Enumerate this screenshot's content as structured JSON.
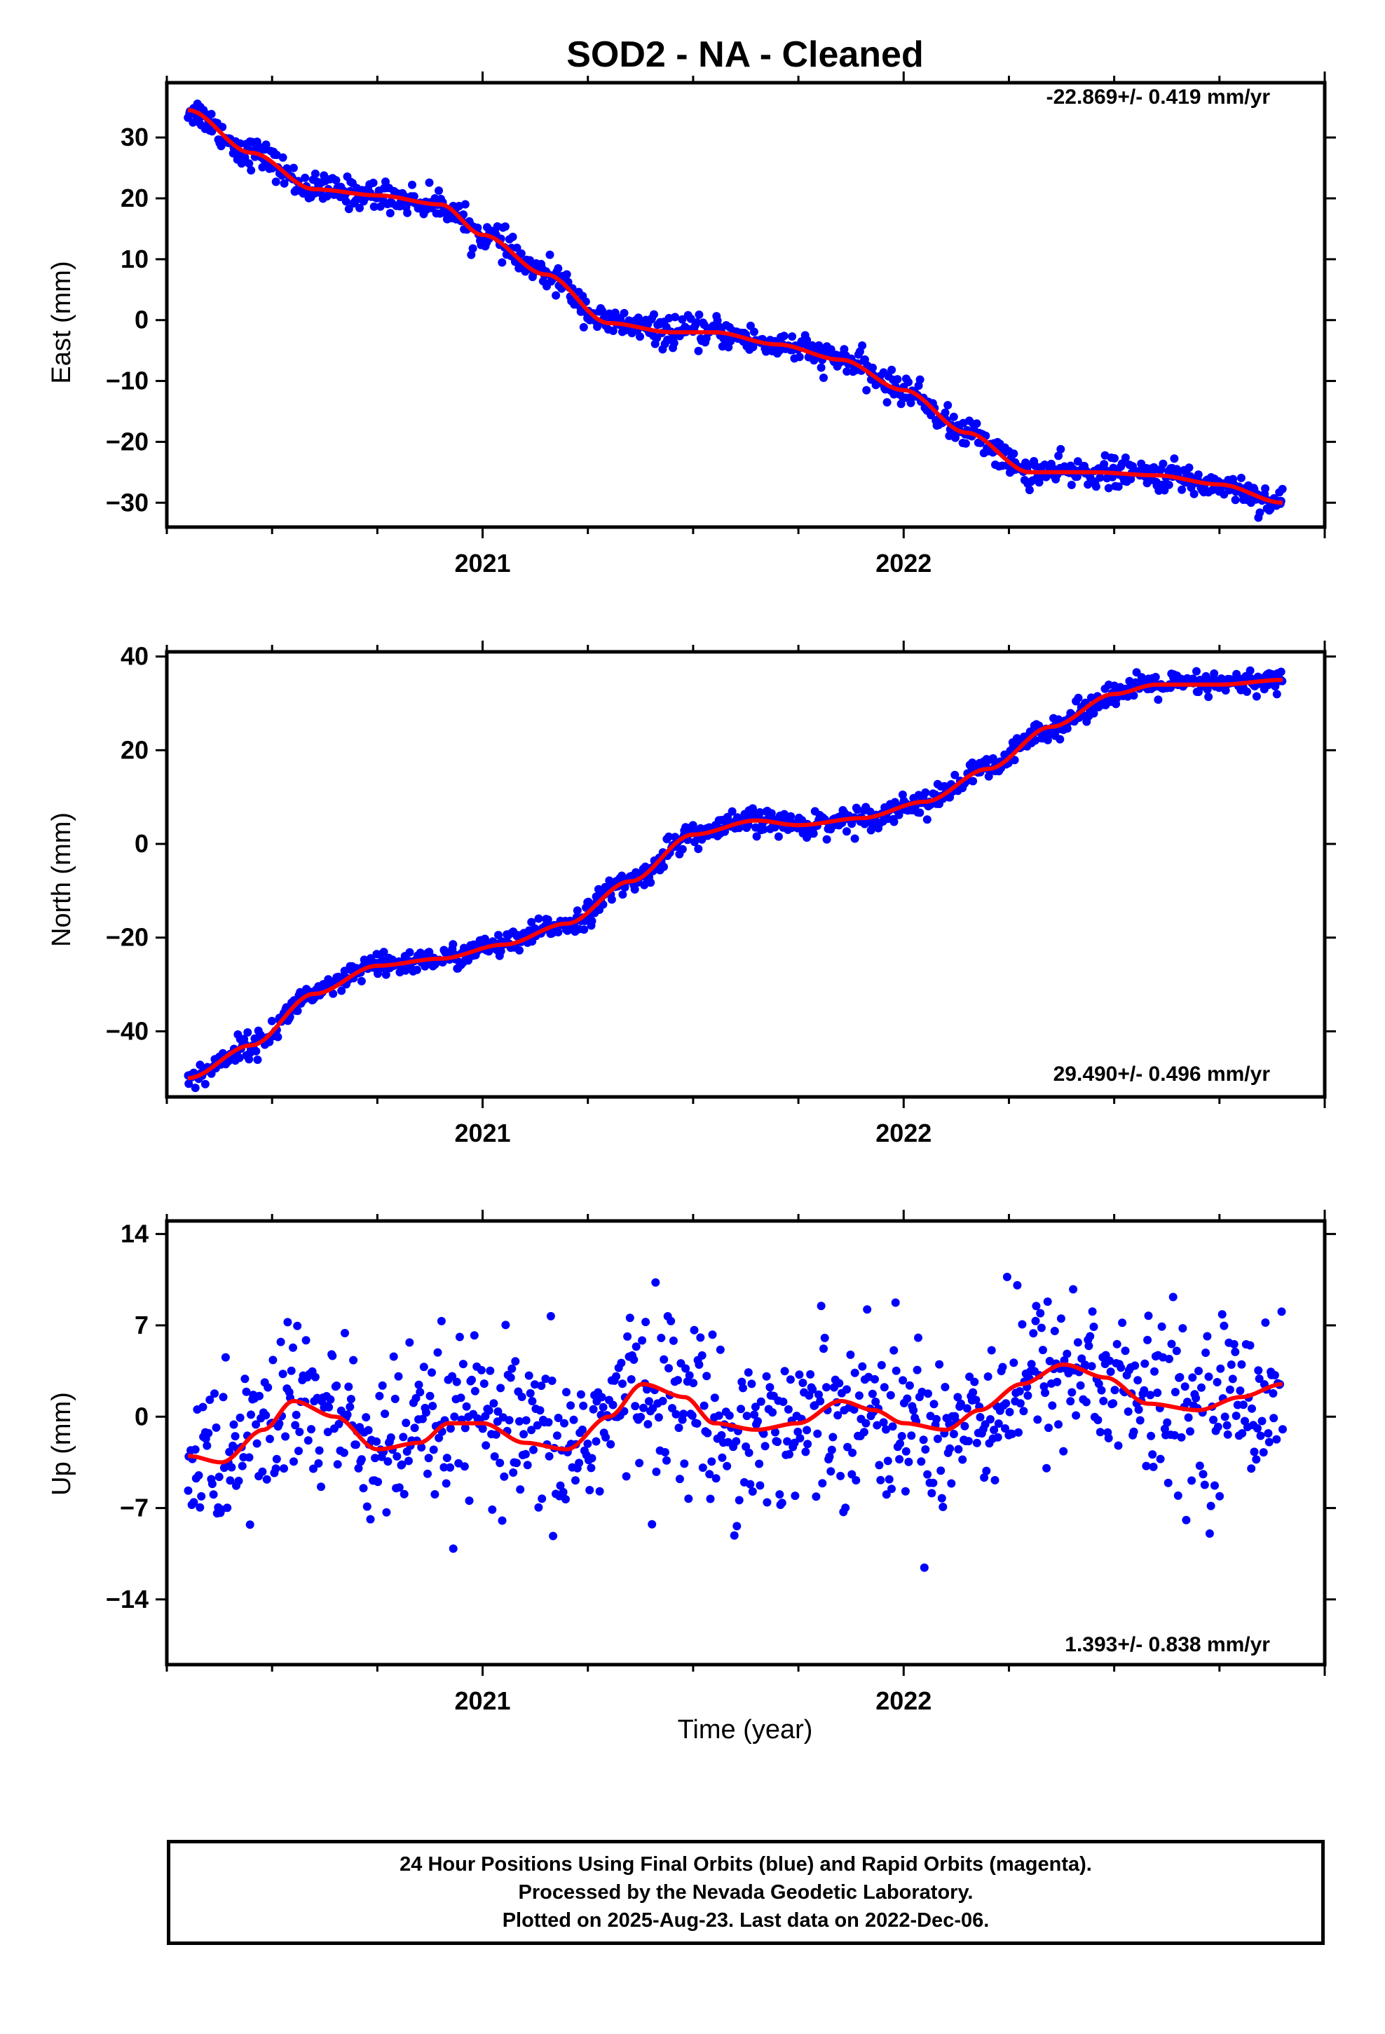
{
  "title": "SOD2  - NA - Cleaned",
  "x_axis_label": "Time (year)",
  "footer": {
    "line1": "24 Hour Positions Using Final Orbits (blue) and Rapid Orbits (magenta).",
    "line2": "Processed by the Nevada Geodetic Laboratory.",
    "line3": "Plotted on 2025-Aug-23. Last data on 2022-Dec-06."
  },
  "colors": {
    "points": "#0000ff",
    "fit": "#ff0000",
    "axis": "#000000"
  },
  "chart_data": [
    {
      "type": "scatter",
      "panel": "east",
      "ylabel": "East (mm)",
      "rate_label": "-22.869+/- 0.419 mm/yr",
      "rate_position": "top-right",
      "xlim": [
        2020.25,
        2023.0
      ],
      "ylim": [
        -34,
        39
      ],
      "yticks": [
        30,
        20,
        10,
        0,
        -10,
        -20,
        -30
      ],
      "ytick_labels": [
        "30",
        "20",
        "10",
        "0",
        "−10",
        "−20",
        "−30"
      ],
      "xticks": [
        2021,
        2022
      ],
      "xtick_labels": [
        "2021",
        "2022"
      ],
      "series": [
        {
          "role": "fit",
          "color": "#ff0000",
          "x": [
            2020.3,
            2020.45,
            2020.6,
            2020.75,
            2020.9,
            2021.0,
            2021.15,
            2021.3,
            2021.45,
            2021.55,
            2021.7,
            2021.85,
            2022.0,
            2022.15,
            2022.3,
            2022.45,
            2022.6,
            2022.75,
            2022.9
          ],
          "y": [
            34.5,
            27.5,
            21.5,
            20.5,
            19.0,
            14.0,
            7.5,
            -0.5,
            -2.0,
            -2.0,
            -4.0,
            -6.5,
            -11.5,
            -18.5,
            -25.0,
            -25.0,
            -25.5,
            -27.0,
            -30.0
          ]
        },
        {
          "role": "observations",
          "color": "#0000ff",
          "scatter_sd": 1.2
        }
      ]
    },
    {
      "type": "scatter",
      "panel": "north",
      "ylabel": "North (mm)",
      "rate_label": "29.490+/- 0.496 mm/yr",
      "rate_position": "bottom-right",
      "xlim": [
        2020.25,
        2023.0
      ],
      "ylim": [
        -54,
        41
      ],
      "yticks": [
        40,
        20,
        0,
        -20,
        -40
      ],
      "ytick_labels": [
        "40",
        "20",
        "0",
        "−20",
        "−40"
      ],
      "xticks": [
        2021,
        2022
      ],
      "xtick_labels": [
        "2021",
        "2022"
      ],
      "series": [
        {
          "role": "fit",
          "color": "#ff0000",
          "x": [
            2020.3,
            2020.45,
            2020.6,
            2020.75,
            2020.9,
            2021.05,
            2021.2,
            2021.35,
            2021.5,
            2021.65,
            2021.75,
            2021.9,
            2022.05,
            2022.2,
            2022.35,
            2022.5,
            2022.6,
            2022.75,
            2022.9
          ],
          "y": [
            -50.0,
            -43.0,
            -32.0,
            -26.0,
            -24.5,
            -21.5,
            -17.0,
            -8.0,
            2.0,
            5.0,
            4.0,
            5.5,
            9.0,
            16.0,
            25.0,
            32.0,
            34.0,
            34.0,
            35.0
          ]
        },
        {
          "role": "observations",
          "color": "#0000ff",
          "scatter_sd": 1.3
        }
      ]
    },
    {
      "type": "scatter",
      "panel": "up",
      "ylabel": "Up (mm)",
      "rate_label": "1.393+/- 0.838 mm/yr",
      "rate_position": "bottom-right",
      "xlim": [
        2020.25,
        2023.0
      ],
      "ylim": [
        -19,
        15
      ],
      "yticks": [
        14,
        7,
        0,
        -7,
        -14
      ],
      "ytick_labels": [
        "14",
        "7",
        "0",
        "−7",
        "−14"
      ],
      "xticks": [
        2021,
        2022
      ],
      "xtick_labels": [
        "2021",
        "2022"
      ],
      "series": [
        {
          "role": "fit",
          "color": "#ff0000",
          "x": [
            2020.3,
            2020.38,
            2020.48,
            2020.55,
            2020.65,
            2020.75,
            2020.85,
            2020.92,
            2021.0,
            2021.1,
            2021.2,
            2021.3,
            2021.38,
            2021.48,
            2021.55,
            2021.65,
            2021.75,
            2021.85,
            2021.93,
            2022.0,
            2022.1,
            2022.18,
            2022.28,
            2022.38,
            2022.48,
            2022.58,
            2022.7,
            2022.8,
            2022.9
          ],
          "y": [
            -3.0,
            -3.5,
            -1.0,
            1.2,
            0.0,
            -2.5,
            -2.0,
            -0.5,
            -0.5,
            -2.0,
            -2.5,
            0.0,
            2.5,
            1.5,
            -0.5,
            -1.0,
            -0.5,
            1.2,
            0.5,
            -0.5,
            -1.0,
            0.5,
            2.5,
            4.0,
            3.0,
            1.0,
            0.5,
            1.5,
            2.5
          ]
        },
        {
          "role": "observations",
          "color": "#0000ff",
          "scatter_sd": 3.2
        }
      ]
    }
  ]
}
